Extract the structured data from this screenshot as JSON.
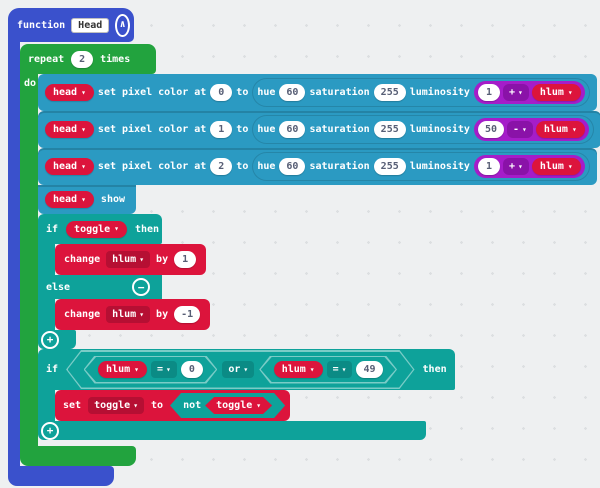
{
  "icons": {
    "dropdown": "▾",
    "plus": "+",
    "minus": "−",
    "collapse": "∧"
  },
  "palette": {
    "function_blue": "#3a51cc",
    "loop_green": "#22a33e",
    "neopixel_blue": "#2b9ac2",
    "logic_teal": "#0ea29a",
    "variable_red": "#dc143c",
    "math_purple": "#a51dc9",
    "workspace_bg": "#eef0f1"
  },
  "function_block": {
    "keyword": "function",
    "name": "Head"
  },
  "repeat_block": {
    "keyword": "repeat",
    "count": "2",
    "times": "times",
    "do": "do"
  },
  "pixel_rows": [
    {
      "target": "head",
      "set_label": "set pixel color at",
      "index": "0",
      "to": "to",
      "hue_label": "hue",
      "hue": "60",
      "sat_label": "saturation",
      "sat": "255",
      "lum_label": "luminosity",
      "lum_left": "1",
      "lum_op": "+",
      "lum_var": "hlum"
    },
    {
      "target": "head",
      "set_label": "set pixel color at",
      "index": "1",
      "to": "to",
      "hue_label": "hue",
      "hue": "60",
      "sat_label": "saturation",
      "sat": "255",
      "lum_label": "luminosity",
      "lum_left": "50",
      "lum_op": "-",
      "lum_var": "hlum"
    },
    {
      "target": "head",
      "set_label": "set pixel color at",
      "index": "2",
      "to": "to",
      "hue_label": "hue",
      "hue": "60",
      "sat_label": "saturation",
      "sat": "255",
      "lum_label": "luminosity",
      "lum_left": "1",
      "lum_op": "+",
      "lum_var": "hlum"
    }
  ],
  "show_block": {
    "target": "head",
    "label": "show"
  },
  "if_else_block": {
    "if_label": "if",
    "condition_var": "toggle",
    "then_label": "then",
    "else_label": "else",
    "change_inc": {
      "label": "change",
      "var": "hlum",
      "by": "by",
      "value": "1"
    },
    "change_dec": {
      "label": "change",
      "var": "hlum",
      "by": "by",
      "value": "-1"
    }
  },
  "if_or_block": {
    "if_label": "if",
    "or_label": "or",
    "then_label": "then",
    "cmp1": {
      "var": "hlum",
      "op": "=",
      "value": "0"
    },
    "cmp2": {
      "var": "hlum",
      "op": "=",
      "value": "49"
    }
  },
  "set_toggle_block": {
    "label": "set",
    "var": "toggle",
    "to": "to",
    "not_label": "not",
    "inner_var": "toggle"
  }
}
